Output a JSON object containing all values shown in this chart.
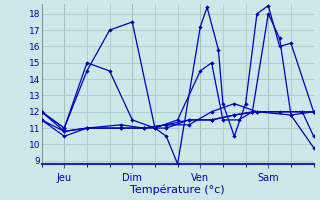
{
  "xlabel": "Température (°c)",
  "ylim": [
    8.8,
    18.6
  ],
  "yticks": [
    9,
    10,
    11,
    12,
    13,
    14,
    15,
    16,
    17,
    18
  ],
  "bg_color": "#cce8e8",
  "line_color": "#0000bb",
  "grid_color": "#aacccc",
  "xtick_labels": [
    "Jeu",
    "Dim",
    "Ven",
    "Sam"
  ],
  "xtick_positions": [
    1,
    4,
    7,
    10
  ],
  "xlim": [
    0,
    12
  ],
  "series": [
    [
      [
        0,
        12.0
      ],
      [
        1,
        11.0
      ],
      [
        2,
        14.5
      ],
      [
        3,
        17.0
      ],
      [
        4,
        17.5
      ],
      [
        5,
        11.0
      ],
      [
        5.5,
        10.5
      ],
      [
        6,
        8.8
      ],
      [
        7,
        17.2
      ],
      [
        7.3,
        18.4
      ],
      [
        7.8,
        15.8
      ],
      [
        8,
        12.5
      ],
      [
        8.5,
        10.5
      ],
      [
        9,
        12.5
      ],
      [
        9.5,
        18.0
      ],
      [
        10,
        18.5
      ],
      [
        10.5,
        16.0
      ],
      [
        11,
        16.2
      ],
      [
        12,
        12.0
      ]
    ],
    [
      [
        0,
        12.0
      ],
      [
        1,
        11.0
      ],
      [
        2,
        15.0
      ],
      [
        3,
        14.5
      ],
      [
        4,
        11.5
      ],
      [
        5,
        11.0
      ],
      [
        6,
        11.5
      ],
      [
        7,
        14.5
      ],
      [
        7.5,
        15.0
      ],
      [
        8,
        11.5
      ],
      [
        8.7,
        11.5
      ],
      [
        9.3,
        12.0
      ],
      [
        10,
        18.0
      ],
      [
        10.5,
        16.5
      ],
      [
        11,
        11.8
      ],
      [
        12,
        12.0
      ]
    ],
    [
      [
        0,
        12.0
      ],
      [
        1,
        10.8
      ],
      [
        2,
        11.0
      ],
      [
        3.5,
        11.2
      ],
      [
        4.5,
        11.0
      ],
      [
        5.5,
        11.2
      ],
      [
        6.5,
        11.5
      ],
      [
        7.5,
        11.5
      ],
      [
        8.5,
        11.8
      ],
      [
        9.3,
        12.0
      ],
      [
        10.5,
        12.0
      ],
      [
        11.5,
        12.0
      ],
      [
        12,
        12.0
      ]
    ],
    [
      [
        0,
        11.5
      ],
      [
        1,
        10.8
      ],
      [
        2,
        11.0
      ],
      [
        3.5,
        11.0
      ],
      [
        4.5,
        11.0
      ],
      [
        5.5,
        11.0
      ],
      [
        6.5,
        11.5
      ],
      [
        7.5,
        11.5
      ],
      [
        8.5,
        11.8
      ],
      [
        9.5,
        12.0
      ],
      [
        11.5,
        12.0
      ],
      [
        12,
        10.5
      ]
    ],
    [
      [
        0,
        11.5
      ],
      [
        1,
        10.5
      ],
      [
        2,
        11.0
      ],
      [
        3.5,
        11.0
      ],
      [
        4.5,
        11.0
      ],
      [
        5.5,
        11.2
      ],
      [
        6.5,
        11.2
      ],
      [
        7.5,
        12.0
      ],
      [
        8.5,
        12.5
      ],
      [
        9.5,
        12.0
      ],
      [
        11,
        11.8
      ],
      [
        12,
        9.8
      ]
    ]
  ]
}
